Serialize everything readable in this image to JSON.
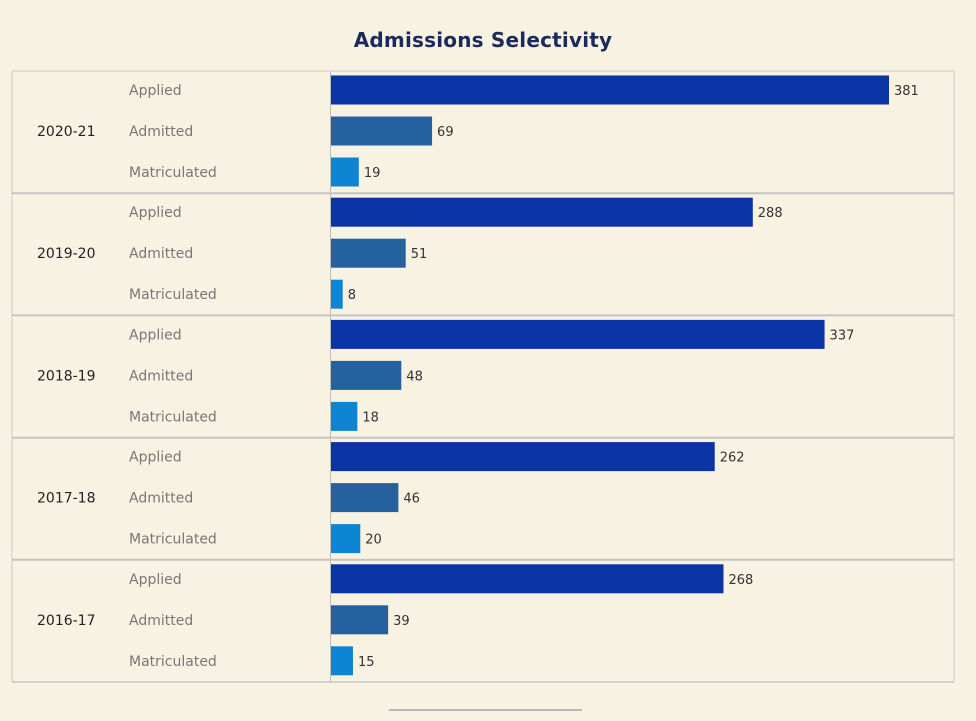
{
  "chart_data": {
    "type": "bar",
    "title": "Admissions Selectivity",
    "orientation": "horizontal",
    "groups": [
      {
        "year": "2020-21",
        "bars": [
          {
            "label": "Applied",
            "value": 381
          },
          {
            "label": "Admitted",
            "value": 69
          },
          {
            "label": "Matriculated",
            "value": 19
          }
        ]
      },
      {
        "year": "2019-20",
        "bars": [
          {
            "label": "Applied",
            "value": 288
          },
          {
            "label": "Admitted",
            "value": 51
          },
          {
            "label": "Matriculated",
            "value": 8
          }
        ]
      },
      {
        "year": "2018-19",
        "bars": [
          {
            "label": "Applied",
            "value": 337
          },
          {
            "label": "Admitted",
            "value": 48
          },
          {
            "label": "Matriculated",
            "value": 18
          }
        ]
      },
      {
        "year": "2017-18",
        "bars": [
          {
            "label": "Applied",
            "value": 262
          },
          {
            "label": "Admitted",
            "value": 46
          },
          {
            "label": "Matriculated",
            "value": 20
          }
        ]
      },
      {
        "year": "2016-17",
        "bars": [
          {
            "label": "Applied",
            "value": 268
          },
          {
            "label": "Admitted",
            "value": 39
          },
          {
            "label": "Matriculated",
            "value": 15
          }
        ]
      }
    ],
    "colors": {
      "Applied": "#0a33a3",
      "Admitted": "#25609f",
      "Matriculated": "#0e85d3"
    },
    "grid": false,
    "xlim": [
      0,
      381
    ]
  }
}
